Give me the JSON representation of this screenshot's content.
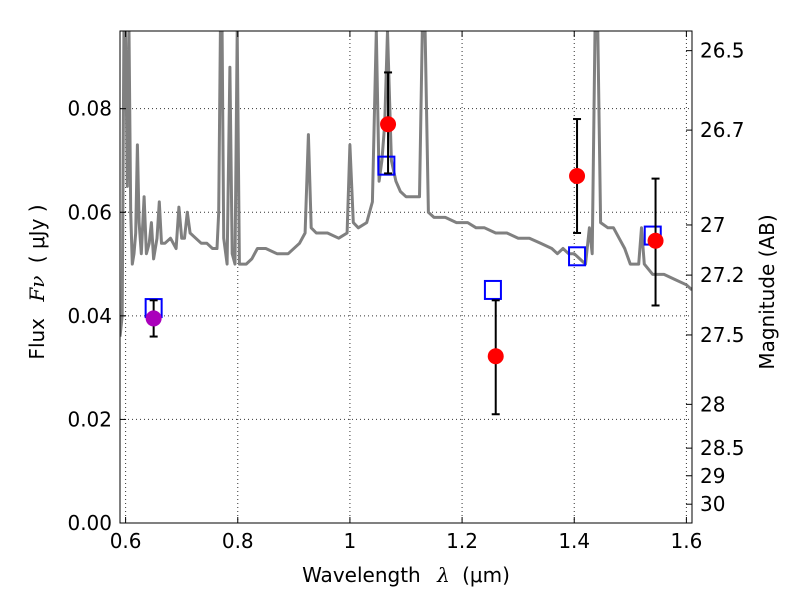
{
  "chart_data": {
    "type": "scatter",
    "xlabel": "Wavelength",
    "xlabel_symbol": "λ",
    "xlabel_unit": "(μm)",
    "ylabel": "Flux",
    "ylabel_symbol": "Fν",
    "ylabel_unit": "( μJy )",
    "y2label": "Magnitude (AB)",
    "xlim": [
      0.59,
      1.61
    ],
    "ylim": [
      0.0,
      0.095
    ],
    "grid": "dotted",
    "x_ticks": [
      {
        "value": 0.6,
        "label": "0.6"
      },
      {
        "value": 0.8,
        "label": "0.8"
      },
      {
        "value": 1.0,
        "label": "1"
      },
      {
        "value": 1.2,
        "label": "1.2"
      },
      {
        "value": 1.4,
        "label": "1.4"
      },
      {
        "value": 1.6,
        "label": "1.6"
      }
    ],
    "y_ticks": [
      {
        "value": 0.0,
        "label": "0.00"
      },
      {
        "value": 0.02,
        "label": "0.02"
      },
      {
        "value": 0.04,
        "label": "0.04"
      },
      {
        "value": 0.06,
        "label": "0.06"
      },
      {
        "value": 0.08,
        "label": "0.08"
      }
    ],
    "magnitude_ticks": [
      {
        "value": 26.5,
        "label": "26.5"
      },
      {
        "value": 26.7,
        "label": "26.7"
      },
      {
        "value": 27.0,
        "label": "27"
      },
      {
        "value": 27.2,
        "label": "27.2"
      },
      {
        "value": 27.5,
        "label": "27.5"
      },
      {
        "value": 28.0,
        "label": "28"
      },
      {
        "value": 28.5,
        "label": "28.5"
      },
      {
        "value": 29.0,
        "label": "29"
      },
      {
        "value": 30.0,
        "label": "30"
      }
    ],
    "model_spectrum": {
      "color": "#808080",
      "points": [
        [
          0.59,
          0.036
        ],
        [
          0.594,
          0.04
        ],
        [
          0.597,
          0.095
        ],
        [
          0.6,
          0.095
        ],
        [
          0.603,
          0.065
        ],
        [
          0.606,
          0.095
        ],
        [
          0.609,
          0.06
        ],
        [
          0.612,
          0.05
        ],
        [
          0.615,
          0.052
        ],
        [
          0.618,
          0.056
        ],
        [
          0.621,
          0.073
        ],
        [
          0.624,
          0.058
        ],
        [
          0.628,
          0.052
        ],
        [
          0.633,
          0.063
        ],
        [
          0.637,
          0.052
        ],
        [
          0.642,
          0.054
        ],
        [
          0.646,
          0.058
        ],
        [
          0.65,
          0.051
        ],
        [
          0.656,
          0.055
        ],
        [
          0.66,
          0.062
        ],
        [
          0.664,
          0.054
        ],
        [
          0.67,
          0.054
        ],
        [
          0.68,
          0.055
        ],
        [
          0.69,
          0.053
        ],
        [
          0.695,
          0.061
        ],
        [
          0.7,
          0.055
        ],
        [
          0.705,
          0.055
        ],
        [
          0.71,
          0.06
        ],
        [
          0.715,
          0.056
        ],
        [
          0.725,
          0.055
        ],
        [
          0.735,
          0.054
        ],
        [
          0.745,
          0.054
        ],
        [
          0.755,
          0.053
        ],
        [
          0.763,
          0.053
        ],
        [
          0.766,
          0.06
        ],
        [
          0.769,
          0.095
        ],
        [
          0.772,
          0.095
        ],
        [
          0.775,
          0.055
        ],
        [
          0.781,
          0.05
        ],
        [
          0.786,
          0.088
        ],
        [
          0.79,
          0.052
        ],
        [
          0.795,
          0.05
        ],
        [
          0.799,
          0.095
        ],
        [
          0.803,
          0.05
        ],
        [
          0.815,
          0.05
        ],
        [
          0.825,
          0.051
        ],
        [
          0.835,
          0.053
        ],
        [
          0.85,
          0.053
        ],
        [
          0.87,
          0.052
        ],
        [
          0.89,
          0.052
        ],
        [
          0.91,
          0.054
        ],
        [
          0.92,
          0.056
        ],
        [
          0.926,
          0.075
        ],
        [
          0.931,
          0.057
        ],
        [
          0.94,
          0.056
        ],
        [
          0.96,
          0.056
        ],
        [
          0.98,
          0.055
        ],
        [
          0.995,
          0.056
        ],
        [
          1.0,
          0.073
        ],
        [
          1.006,
          0.058
        ],
        [
          1.015,
          0.057
        ],
        [
          1.03,
          0.058
        ],
        [
          1.04,
          0.062
        ],
        [
          1.047,
          0.095
        ],
        [
          1.052,
          0.066
        ],
        [
          1.057,
          0.07
        ],
        [
          1.062,
          0.077
        ],
        [
          1.067,
          0.095
        ],
        [
          1.074,
          0.07
        ],
        [
          1.082,
          0.066
        ],
        [
          1.09,
          0.064
        ],
        [
          1.1,
          0.063
        ],
        [
          1.11,
          0.063
        ],
        [
          1.124,
          0.063
        ],
        [
          1.129,
          0.095
        ],
        [
          1.134,
          0.095
        ],
        [
          1.14,
          0.06
        ],
        [
          1.15,
          0.059
        ],
        [
          1.17,
          0.059
        ],
        [
          1.19,
          0.058
        ],
        [
          1.21,
          0.058
        ],
        [
          1.225,
          0.057
        ],
        [
          1.24,
          0.057
        ],
        [
          1.26,
          0.056
        ],
        [
          1.28,
          0.056
        ],
        [
          1.3,
          0.055
        ],
        [
          1.32,
          0.055
        ],
        [
          1.34,
          0.054
        ],
        [
          1.36,
          0.053
        ],
        [
          1.37,
          0.052
        ],
        [
          1.38,
          0.053
        ],
        [
          1.39,
          0.052
        ],
        [
          1.4,
          0.052
        ],
        [
          1.41,
          0.051
        ],
        [
          1.42,
          0.05
        ],
        [
          1.427,
          0.057
        ],
        [
          1.432,
          0.052
        ],
        [
          1.437,
          0.095
        ],
        [
          1.442,
          0.095
        ],
        [
          1.447,
          0.058
        ],
        [
          1.46,
          0.057
        ],
        [
          1.47,
          0.057
        ],
        [
          1.48,
          0.055
        ],
        [
          1.49,
          0.053
        ],
        [
          1.5,
          0.05
        ],
        [
          1.515,
          0.05
        ],
        [
          1.52,
          0.057
        ],
        [
          1.525,
          0.05
        ],
        [
          1.54,
          0.048
        ],
        [
          1.56,
          0.048
        ],
        [
          1.58,
          0.047
        ],
        [
          1.6,
          0.046
        ],
        [
          1.61,
          0.045
        ]
      ]
    },
    "series": [
      {
        "marker": "square",
        "color": "#0000ff",
        "points": [
          {
            "x": 0.65,
            "y": 0.0415
          },
          {
            "x": 1.065,
            "y": 0.069
          },
          {
            "x": 1.255,
            "y": 0.045
          },
          {
            "x": 1.405,
            "y": 0.0515
          },
          {
            "x": 1.54,
            "y": 0.0555
          }
        ]
      },
      {
        "marker": "circle",
        "color": "#ff0000",
        "points": [
          {
            "x": 1.068,
            "y": 0.077,
            "yerr_low": 0.0675,
            "yerr_high": 0.087
          },
          {
            "x": 1.26,
            "y": 0.0322,
            "yerr_low": 0.021,
            "yerr_high": 0.043
          },
          {
            "x": 1.405,
            "y": 0.067,
            "yerr_low": 0.056,
            "yerr_high": 0.078
          },
          {
            "x": 1.545,
            "y": 0.0545,
            "yerr_low": 0.042,
            "yerr_high": 0.0665
          }
        ]
      },
      {
        "marker": "circle",
        "color": "#aa00bb",
        "points": [
          {
            "x": 0.65,
            "y": 0.0395,
            "yerr_low": 0.036,
            "yerr_high": 0.043
          }
        ]
      }
    ]
  }
}
